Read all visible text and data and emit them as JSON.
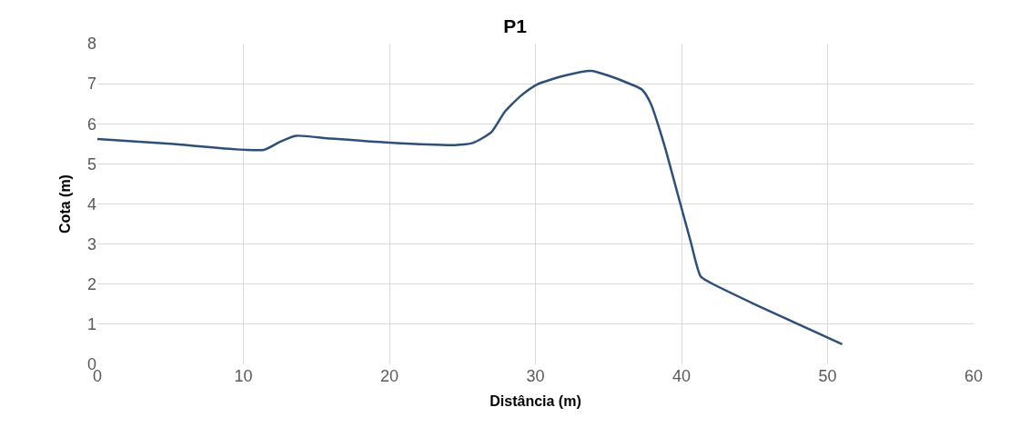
{
  "chart_data": {
    "type": "line",
    "title": "P1",
    "xlabel": "Distância (m)",
    "ylabel": "Cota (m)",
    "series": [
      {
        "color": "#2e4f78",
        "x": [
          0,
          5,
          11.4,
          12.5,
          13.6,
          16,
          20,
          24.5,
          25.7,
          27,
          27.9,
          29,
          30.1,
          32,
          33.8,
          35,
          36.3,
          37.3,
          37.9,
          38.8,
          39.7,
          40.6,
          41.3,
          41.9,
          45,
          48,
          51
        ],
        "values": [
          5.62,
          5.5,
          5.35,
          5.55,
          5.7,
          5.63,
          5.53,
          5.47,
          5.52,
          5.8,
          6.3,
          6.7,
          6.98,
          7.2,
          7.32,
          7.2,
          7.02,
          6.85,
          6.5,
          5.5,
          4.3,
          3.1,
          2.2,
          2.05,
          1.5,
          1,
          0.5
        ]
      }
    ],
    "xlim": [
      0,
      60
    ],
    "xticks": [
      0,
      10,
      20,
      30,
      40,
      50,
      60
    ],
    "ylim": [
      0,
      8
    ],
    "yticks": [
      0,
      1,
      2,
      3,
      4,
      5,
      6,
      7,
      8
    ],
    "grid": true,
    "legend": false,
    "marker": "none",
    "line_style": "solid"
  }
}
